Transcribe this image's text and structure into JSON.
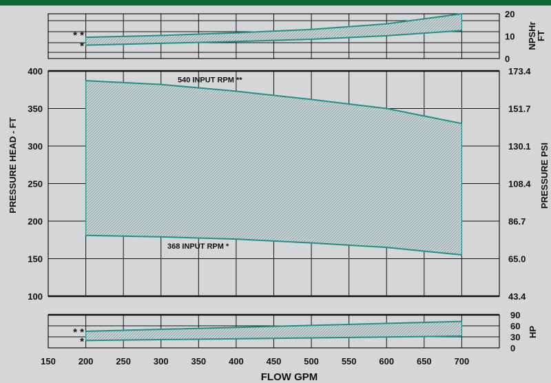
{
  "colors": {
    "background": "#d4d6d7",
    "banner": "#0b6b2e",
    "curve": "#1f8f8a",
    "grid": "#111111",
    "fill_hatch": "#6e9ea0"
  },
  "chart_data": {
    "type": "area",
    "x_values": [
      150,
      200,
      250,
      300,
      350,
      400,
      450,
      500,
      550,
      600,
      650,
      700
    ],
    "x_tick_labels": [
      "150",
      "200",
      "250",
      "300",
      "350",
      "400",
      "450",
      "500",
      "550",
      "600",
      "650",
      "700"
    ],
    "xlabel": "FLOW GPM",
    "panels": [
      {
        "id": "npshr",
        "ylabel_right": [
          "NPSHr",
          "FT"
        ],
        "ylim": [
          0,
          20
        ],
        "right_tick_labels": [
          "20",
          "10",
          "0"
        ],
        "right_tick_values": [
          20,
          10,
          0
        ],
        "curves": [
          {
            "marker": "* *",
            "x": [
              200,
              300,
              400,
              500,
              600,
              700
            ],
            "y": [
              9.5,
              10.3,
              11.5,
              13,
              15.5,
              20
            ]
          },
          {
            "marker": "*",
            "x": [
              200,
              300,
              400,
              500,
              600,
              700
            ],
            "y": [
              6,
              6.8,
              7.6,
              8.6,
              10.2,
              12.5
            ]
          }
        ]
      },
      {
        "id": "pressure",
        "ylabel_left": "PRESSURE HEAD - FT",
        "ylabel_right": "PRESSURE PSI",
        "ylim": [
          100,
          400
        ],
        "left_tick_labels": [
          "400",
          "350",
          "300",
          "250",
          "200",
          "150",
          "100"
        ],
        "left_tick_values": [
          400,
          350,
          300,
          250,
          200,
          150,
          100
        ],
        "right_tick_labels": [
          "173.4",
          "151.7",
          "130.1",
          "108.4",
          "86.7",
          "65.0",
          "43.4"
        ],
        "curves": [
          {
            "label": "540 INPUT RPM **",
            "x": [
              200,
              300,
              400,
              500,
              600,
              700
            ],
            "y": [
              387,
              382,
              373,
              362,
              350,
              330
            ]
          },
          {
            "label": "368 INPUT RPM *",
            "x": [
              200,
              300,
              400,
              500,
              600,
              700
            ],
            "y": [
              181,
              179,
              176,
              171,
              165,
              155
            ]
          }
        ]
      },
      {
        "id": "hp",
        "ylabel_right": "HP",
        "ylim": [
          0,
          90
        ],
        "right_tick_labels": [
          "90",
          "60",
          "30",
          "0"
        ],
        "right_tick_values": [
          90,
          60,
          30,
          0
        ],
        "curves": [
          {
            "marker": "* *",
            "x": [
              200,
              700
            ],
            "y": [
              45,
              72
            ]
          },
          {
            "marker": "*",
            "x": [
              200,
              700
            ],
            "y": [
              20,
              32
            ]
          }
        ]
      }
    ]
  }
}
